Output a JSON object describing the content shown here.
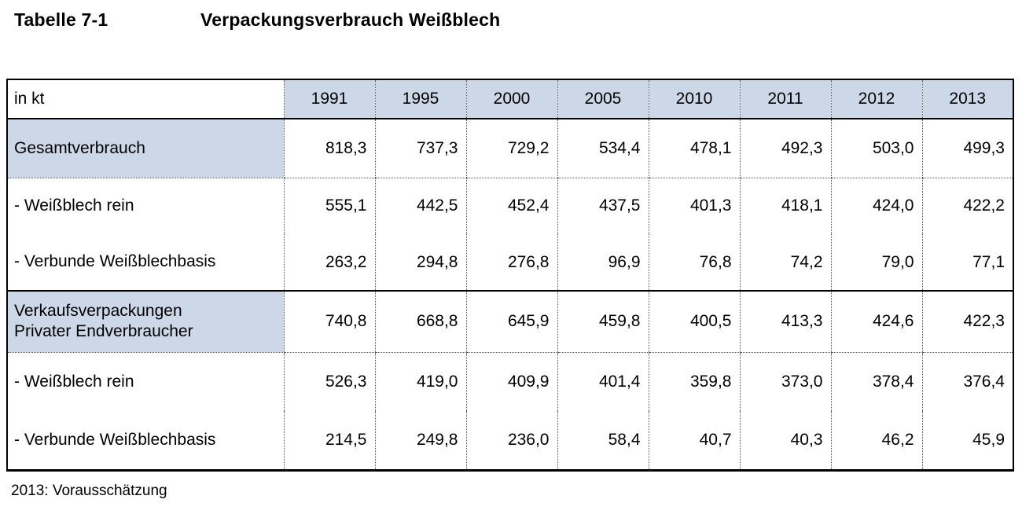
{
  "title": {
    "number": "Tabelle 7-1",
    "text": "Verpackungsverbrauch Weißblech"
  },
  "footnote": "2013: Vorausschätzung",
  "colors": {
    "header_fill": "#ccd8e8",
    "border": "#000000"
  },
  "table": {
    "unit": "in kt",
    "years": [
      "1991",
      "1995",
      "2000",
      "2005",
      "2010",
      "2011",
      "2012",
      "2013"
    ],
    "rows": [
      {
        "label": "Gesamtverbrauch",
        "label2": "",
        "highlight": true,
        "values": [
          "818,3",
          "737,3",
          "729,2",
          "534,4",
          "478,1",
          "492,3",
          "503,0",
          "499,3"
        ]
      },
      {
        "label": "- Weißblech rein",
        "label2": "",
        "highlight": false,
        "values": [
          "555,1",
          "442,5",
          "452,4",
          "437,5",
          "401,3",
          "418,1",
          "424,0",
          "422,2"
        ]
      },
      {
        "label": "- Verbunde Weißblechbasis",
        "label2": "",
        "highlight": false,
        "values": [
          "263,2",
          "294,8",
          "276,8",
          "96,9",
          "76,8",
          "74,2",
          "79,0",
          "77,1"
        ]
      },
      {
        "label": "Verkaufsverpackungen",
        "label2": "Privater Endverbraucher",
        "highlight": true,
        "values": [
          "740,8",
          "668,8",
          "645,9",
          "459,8",
          "400,5",
          "413,3",
          "424,6",
          "422,3"
        ]
      },
      {
        "label": "- Weißblech rein",
        "label2": "",
        "highlight": false,
        "values": [
          "526,3",
          "419,0",
          "409,9",
          "401,4",
          "359,8",
          "373,0",
          "378,4",
          "376,4"
        ]
      },
      {
        "label": "- Verbunde Weißblechbasis",
        "label2": "",
        "highlight": false,
        "values": [
          "214,5",
          "249,8",
          "236,0",
          "58,4",
          "40,7",
          "40,3",
          "46,2",
          "45,9"
        ]
      }
    ]
  }
}
